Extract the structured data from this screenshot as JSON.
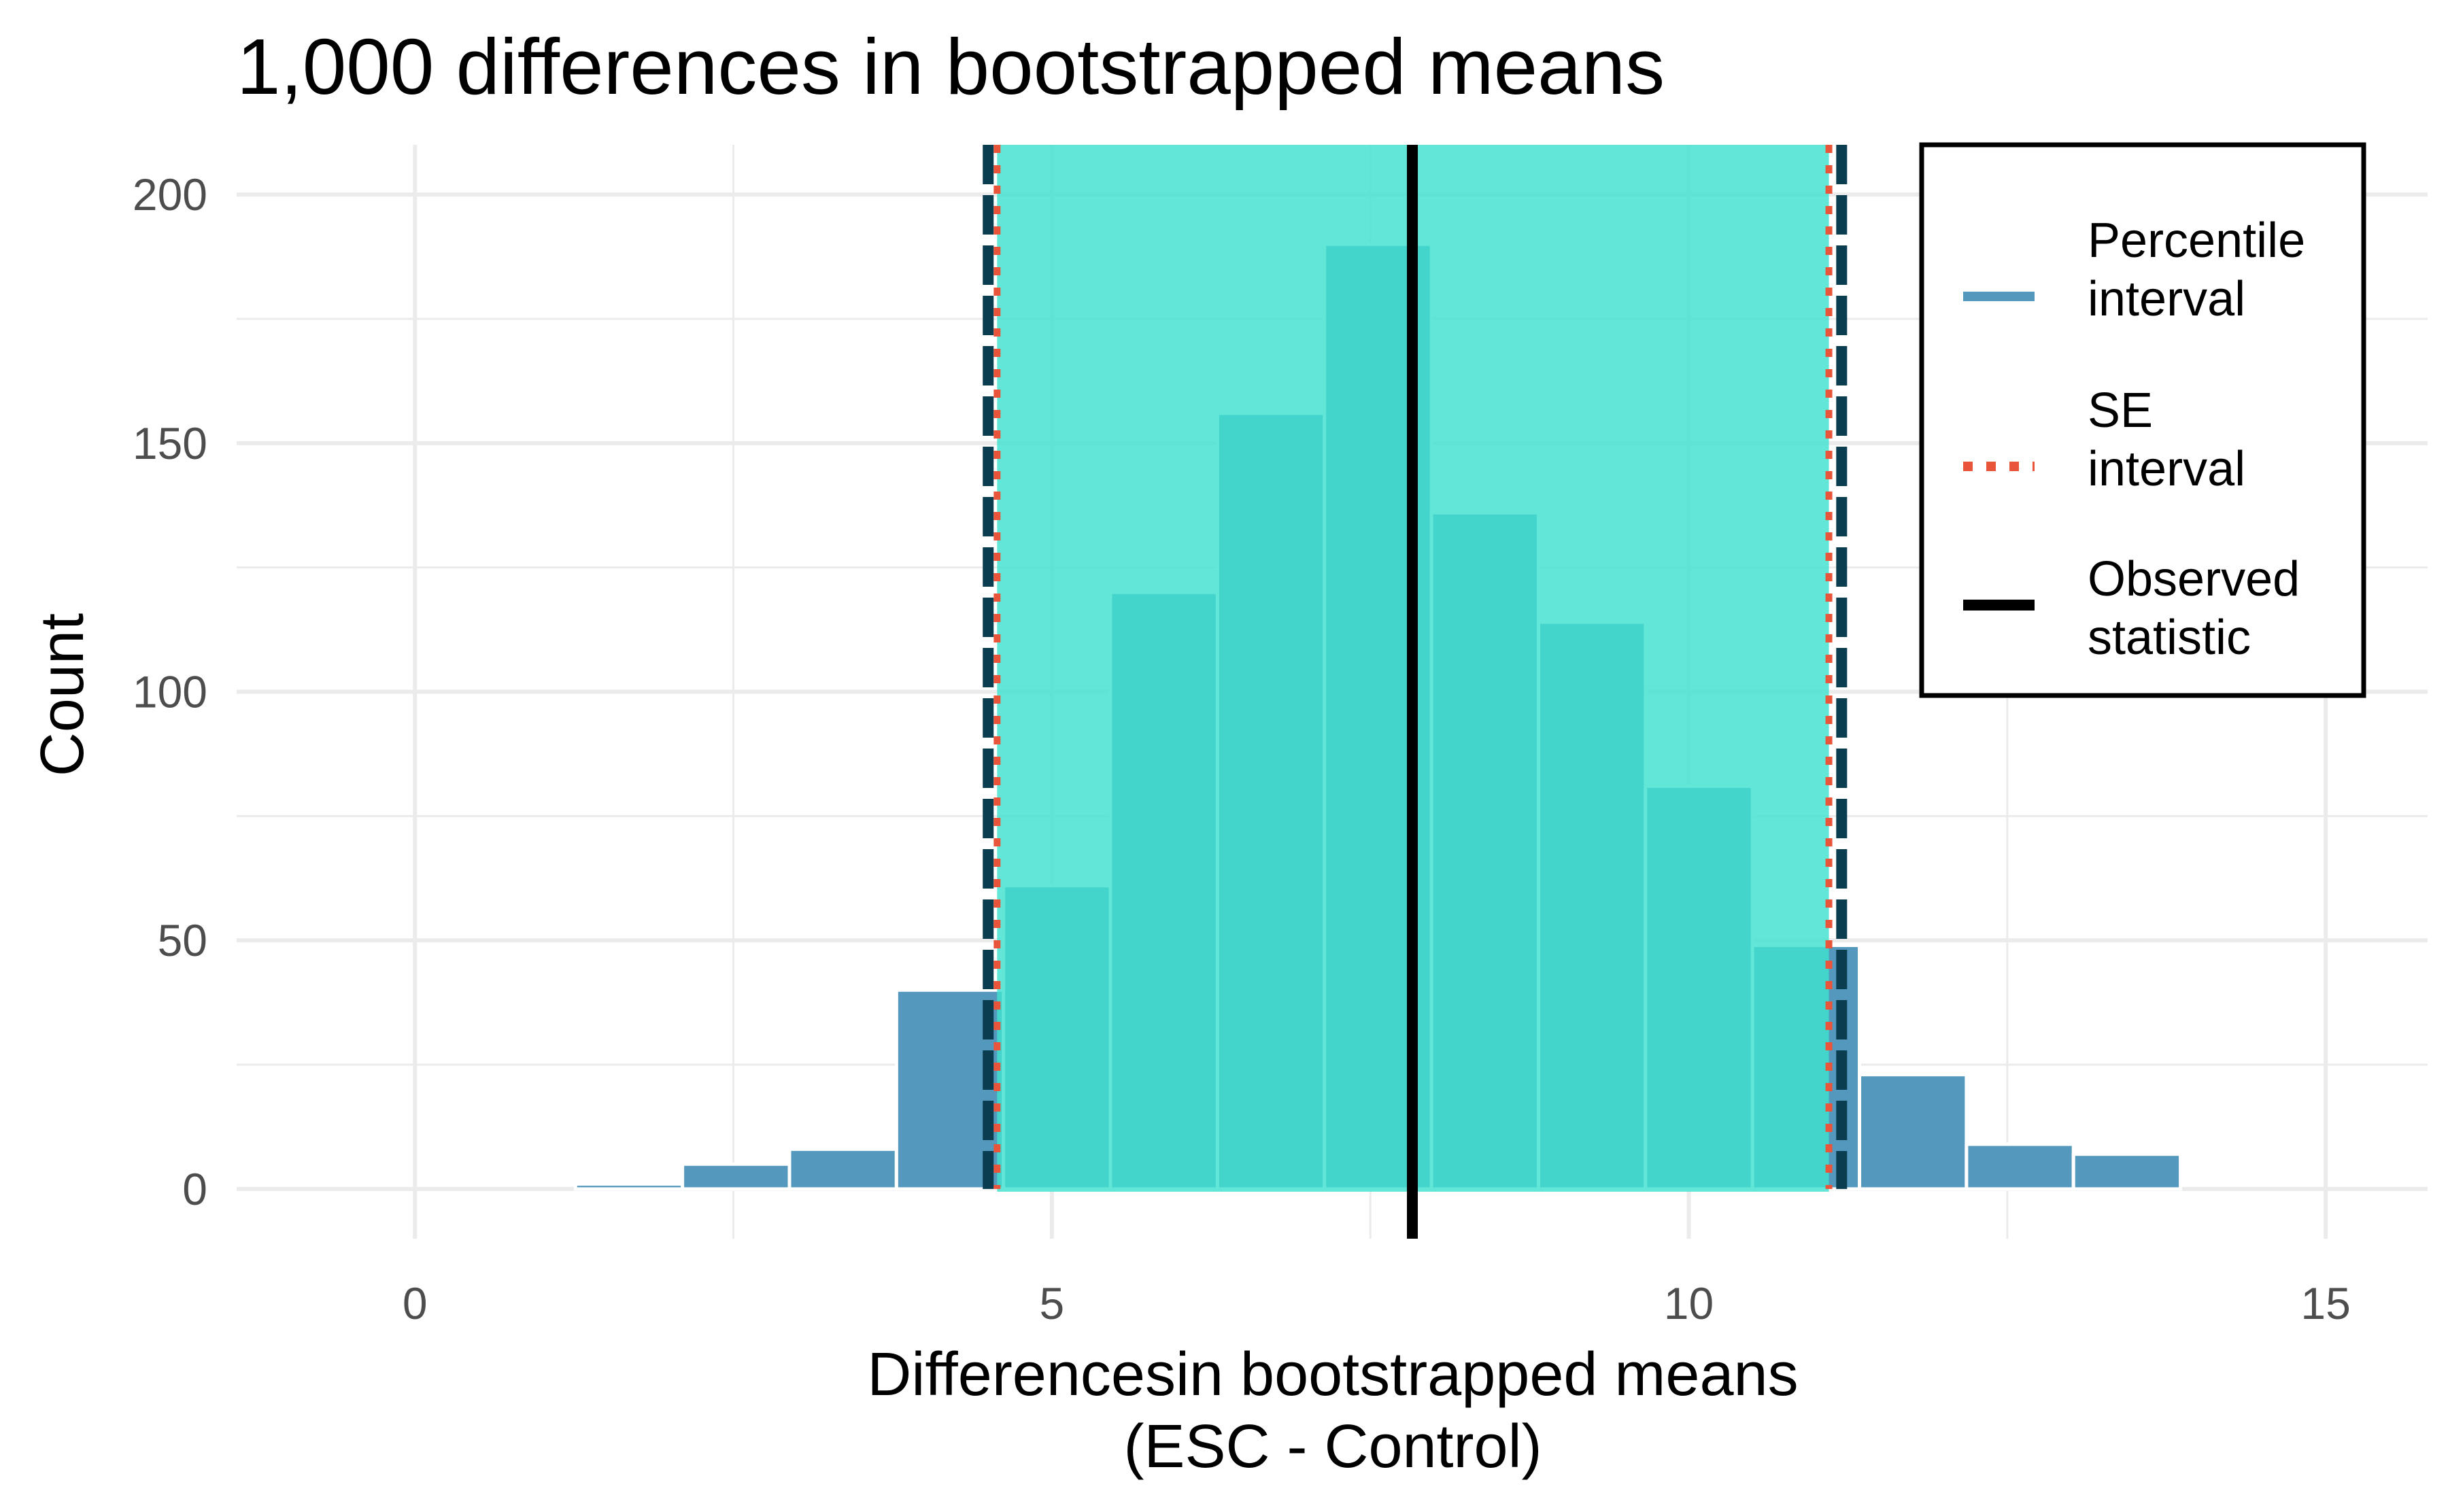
{
  "chart_data": {
    "type": "bar",
    "title": "1,000 differences in bootstrapped means",
    "xlabel_line1": "Differencesin bootstrapped means",
    "xlabel_line2": "(ESC - Control)",
    "ylabel": "Count",
    "xlim": [
      -1.4,
      15.8
    ],
    "ylim": [
      -10,
      210
    ],
    "x_ticks": [
      0,
      5,
      10,
      15
    ],
    "x_tick_labels": [
      "0",
      "5",
      "10",
      "15"
    ],
    "y_ticks": [
      0,
      50,
      100,
      150,
      200
    ],
    "y_tick_labels": [
      "0",
      "50",
      "100",
      "150",
      "200"
    ],
    "bin_width": 0.84,
    "bins": [
      {
        "center": 0.0,
        "count": 0
      },
      {
        "center": 0.84,
        "count": 0
      },
      {
        "center": 1.68,
        "count": 1
      },
      {
        "center": 2.52,
        "count": 5
      },
      {
        "center": 3.36,
        "count": 8
      },
      {
        "center": 4.2,
        "count": 40
      },
      {
        "center": 5.04,
        "count": 61
      },
      {
        "center": 5.88,
        "count": 120
      },
      {
        "center": 6.72,
        "count": 156
      },
      {
        "center": 7.56,
        "count": 190
      },
      {
        "center": 8.4,
        "count": 136
      },
      {
        "center": 9.24,
        "count": 114
      },
      {
        "center": 10.08,
        "count": 81
      },
      {
        "center": 10.92,
        "count": 49
      },
      {
        "center": 11.76,
        "count": 23
      },
      {
        "center": 12.6,
        "count": 9
      },
      {
        "center": 13.44,
        "count": 7
      },
      {
        "center": 14.28,
        "count": 0
      },
      {
        "center": 15.12,
        "count": 0
      }
    ],
    "observed_statistic": 7.83,
    "percentile_interval": [
      4.5,
      11.2
    ],
    "se_interval": [
      4.57,
      11.1
    ],
    "shade_interval": [
      4.57,
      11.1
    ],
    "colors": {
      "bar": "#5499bd",
      "shade": "#40e0d0",
      "percentile_line": "#0b3d50",
      "se_line": "#e9553a",
      "observed_line": "#000000",
      "grid": "#ebebeb"
    },
    "legend": {
      "position": "top-right",
      "entries": [
        {
          "line1": "Percentile",
          "line2": "interval",
          "style": "dashed"
        },
        {
          "line1": "SE",
          "line2": "interval",
          "style": "dotted"
        },
        {
          "line1": "Observed",
          "line2": "statistic",
          "style": "solid"
        }
      ]
    }
  }
}
